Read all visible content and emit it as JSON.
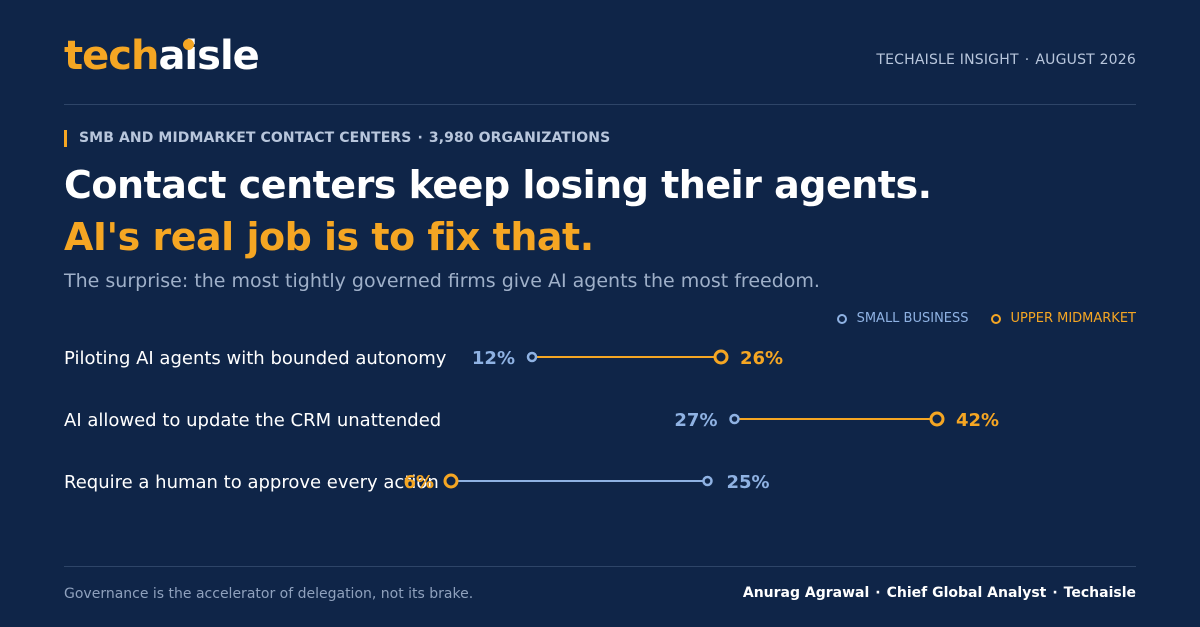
{
  "brand": {
    "logo_part1": "tech",
    "logo_part2": "aisle"
  },
  "header": {
    "insight_label": "TECHAISLE INSIGHT",
    "date": "AUGUST 2026"
  },
  "eyebrow": {
    "segment": "SMB AND MIDMARKET CONTACT CENTERS",
    "sample": "3,980 ORGANIZATIONS"
  },
  "headline": {
    "line1": "Contact centers keep losing their agents.",
    "line2": "AI's real job is to fix that."
  },
  "subtitle": "The surprise: the most tightly governed firms give AI agents the most freedom.",
  "colors": {
    "background": "#0f2548",
    "accent": "#f5a623",
    "small_business": "#8fb2e3",
    "upper_midmarket": "#f5a623"
  },
  "chart_data": {
    "type": "dumbbell",
    "unit": "%",
    "xlim": [
      0,
      50
    ],
    "legend": {
      "placement": "top-right"
    },
    "series": [
      {
        "name": "SMALL BUSINESS",
        "color": "#8fb2e3"
      },
      {
        "name": "UPPER MIDMARKET",
        "color": "#f5a623"
      }
    ],
    "categories": [
      "Piloting AI agents with bounded autonomy",
      "AI allowed to update the CRM unattended",
      "Require a human to approve every action"
    ],
    "rows": [
      {
        "label": "Piloting AI agents with bounded autonomy",
        "small_business": 12,
        "upper_midmarket": 26
      },
      {
        "label": "AI allowed to update the CRM unattended",
        "small_business": 27,
        "upper_midmarket": 42
      },
      {
        "label": "Require a human to approve every action",
        "small_business": 25,
        "upper_midmarket": 6
      }
    ]
  },
  "footer": {
    "tagline": "Governance is the accelerator of delegation, not its brake.",
    "author": "Anurag Agrawal",
    "role": "Chief Global Analyst",
    "company": "Techaisle"
  }
}
